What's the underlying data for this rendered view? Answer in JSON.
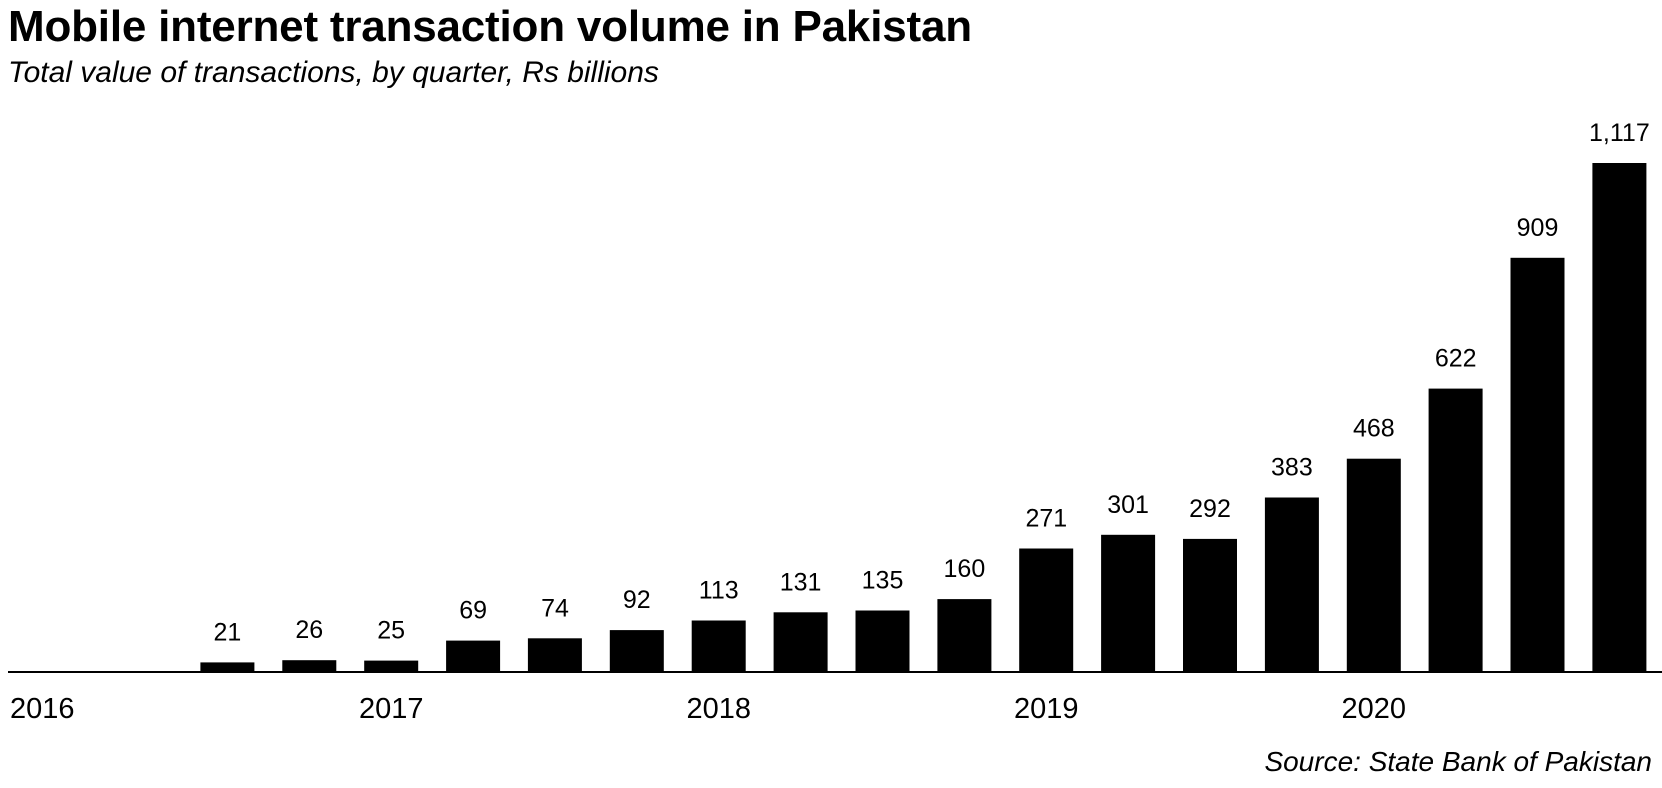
{
  "title": "Mobile internet transaction volume in Pakistan",
  "subtitle": "Total value of transactions, by quarter, Rs billions",
  "source": "Source: State Bank of Pakistan",
  "chart_data": {
    "type": "bar",
    "title": "Mobile internet transaction volume in Pakistan",
    "subtitle": "Total value of transactions, by quarter, Rs billions",
    "bar_color": "#000000",
    "grid": false,
    "legend": "none",
    "categories": [
      "2016 Q1",
      "2016 Q2",
      "2016 Q3",
      "2016 Q4",
      "2017 Q1",
      "2017 Q2",
      "2017 Q3",
      "2017 Q4",
      "2018 Q1",
      "2018 Q2",
      "2018 Q3",
      "2018 Q4",
      "2019 Q1",
      "2019 Q2",
      "2019 Q3",
      "2019 Q4",
      "2020 Q1",
      "2020 Q2",
      "2020 Q3",
      "2020 Q4"
    ],
    "values": [
      null,
      null,
      21,
      26,
      25,
      69,
      74,
      92,
      113,
      131,
      135,
      160,
      271,
      301,
      292,
      383,
      468,
      622,
      909,
      1117
    ],
    "value_labels": [
      "",
      "",
      "21",
      "26",
      "25",
      "69",
      "74",
      "92",
      "113",
      "131",
      "135",
      "160",
      "271",
      "301",
      "292",
      "383",
      "468",
      "622",
      "909",
      "1,117"
    ],
    "x_tick_labels": [
      {
        "category_index": 0,
        "label": "2016"
      },
      {
        "category_index": 4,
        "label": "2017"
      },
      {
        "category_index": 8,
        "label": "2018"
      },
      {
        "category_index": 12,
        "label": "2019"
      },
      {
        "category_index": 16,
        "label": "2020"
      }
    ],
    "ylim": [
      0,
      1117
    ]
  }
}
